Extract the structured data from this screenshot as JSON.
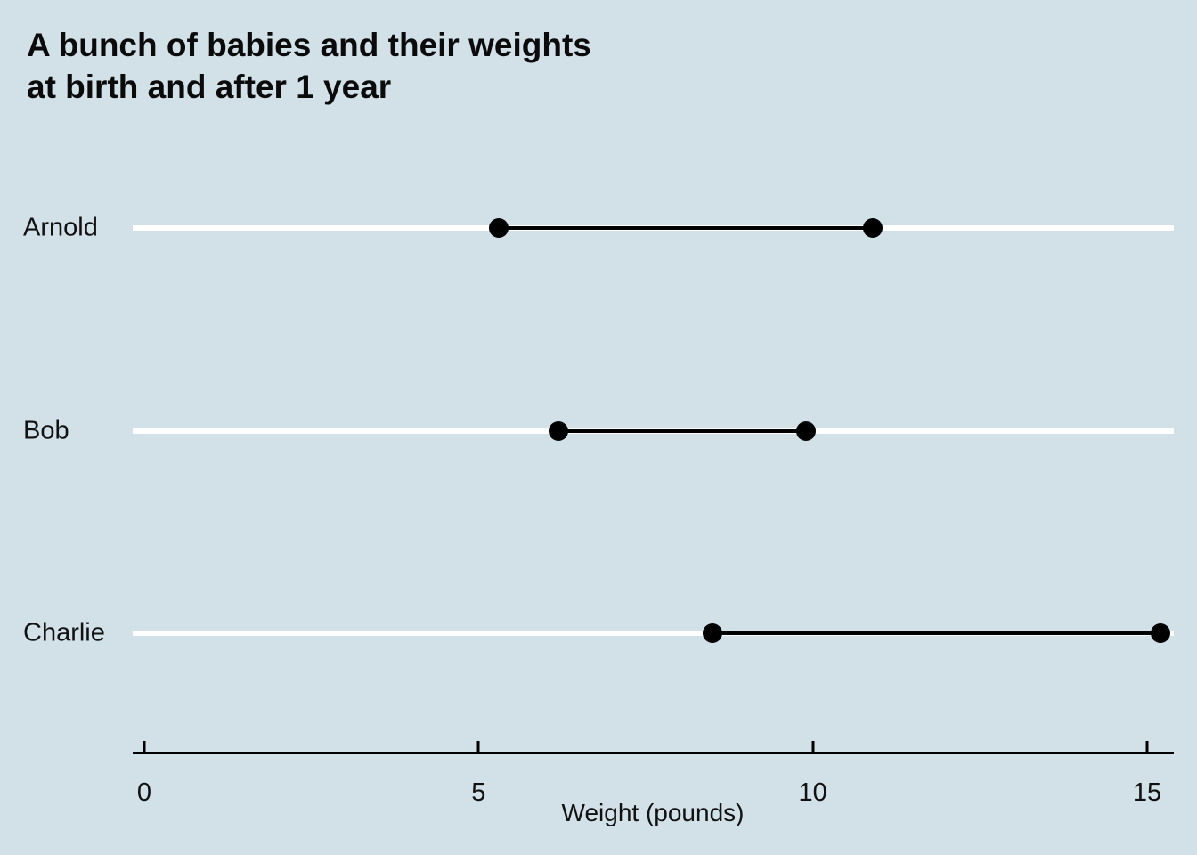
{
  "chart_data": {
    "type": "dumbbell",
    "title": "A bunch of babies and their weights\nat birth and after 1 year",
    "xlabel": "Weight (pounds)",
    "x_ticks": [
      0,
      5,
      10,
      15
    ],
    "xlim": [
      -0.2,
      15.4
    ],
    "grid": false,
    "legend": false,
    "series_labels": {
      "start": "birth",
      "end": "after 1 year"
    },
    "babies": [
      {
        "name": "Arnold",
        "birth_weight": 5.3,
        "year1_weight": 10.9
      },
      {
        "name": "Bob",
        "birth_weight": 6.2,
        "year1_weight": 9.9
      },
      {
        "name": "Charlie",
        "birth_weight": 8.5,
        "year1_weight": 15.2
      }
    ]
  },
  "colors": {
    "background": "#d2e1e8",
    "track": "#ffffff",
    "dot": "#000000",
    "segment": "#000000",
    "text": "#0b0b0b"
  }
}
